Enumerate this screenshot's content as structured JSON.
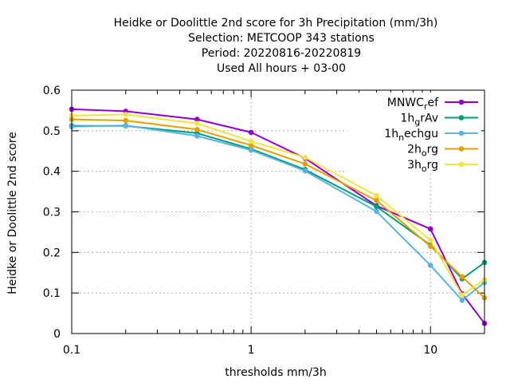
{
  "chart_data": {
    "type": "line",
    "title_lines": [
      "Heidke or Doolittle 2nd score  for 3h Precipitation (mm/3h)",
      "Selection: METCOOP    343 stations",
      "Period: 20220816-20220819",
      "Used  All hours  + 03-00"
    ],
    "xlabel": "thresholds mm/3h",
    "ylabel": "Heidke or Doolittle 2nd score",
    "xscale": "log",
    "xlim": [
      0.1,
      20
    ],
    "ylim": [
      0,
      0.6
    ],
    "x_ticks": [
      {
        "value": 0.1,
        "label": "0.1"
      },
      {
        "value": 1,
        "label": "1"
      },
      {
        "value": 10,
        "label": "10"
      }
    ],
    "x_minor_ticks": [
      0.2,
      0.3,
      0.4,
      0.5,
      0.6,
      0.7,
      0.8,
      0.9,
      2,
      3,
      4,
      5,
      6,
      7,
      8,
      9,
      20
    ],
    "y_ticks": [
      {
        "value": 0,
        "label": "0"
      },
      {
        "value": 0.1,
        "label": "0.1"
      },
      {
        "value": 0.2,
        "label": "0.2"
      },
      {
        "value": 0.3,
        "label": "0.3"
      },
      {
        "value": 0.4,
        "label": "0.4"
      },
      {
        "value": 0.5,
        "label": "0.5"
      },
      {
        "value": 0.6,
        "label": "0.6"
      }
    ],
    "grid": true,
    "legend_position": "top-right",
    "x": [
      0.1,
      0.2,
      0.5,
      1,
      2,
      5,
      10,
      15,
      20
    ],
    "series": [
      {
        "base": "MNWC",
        "sub": "r",
        "tail": "ef",
        "color": "#9400d3",
        "values": [
          0.553,
          0.548,
          0.528,
          0.496,
          0.432,
          0.315,
          0.258,
          0.098,
          0.025
        ]
      },
      {
        "base": "1h",
        "sub": "g",
        "tail": "rAv",
        "color": "#009e73",
        "values": [
          0.512,
          0.512,
          0.494,
          0.455,
          0.404,
          0.313,
          0.218,
          0.135,
          0.175
        ]
      },
      {
        "base": "1h",
        "sub": "n",
        "tail": "echgu",
        "color": "#56b4e9",
        "values": [
          0.51,
          0.513,
          0.487,
          0.452,
          0.401,
          0.301,
          0.168,
          0.082,
          0.126
        ]
      },
      {
        "base": "2h",
        "sub": "o",
        "tail": "rg",
        "color": "#e69f00",
        "values": [
          0.528,
          0.525,
          0.503,
          0.464,
          0.418,
          0.328,
          0.215,
          0.14,
          0.088
        ]
      },
      {
        "base": "3h",
        "sub": "o",
        "tail": "rg",
        "color": "#f0e442",
        "values": [
          0.537,
          0.54,
          0.518,
          0.474,
          0.434,
          0.34,
          0.23,
          0.095,
          0.133
        ]
      }
    ]
  }
}
